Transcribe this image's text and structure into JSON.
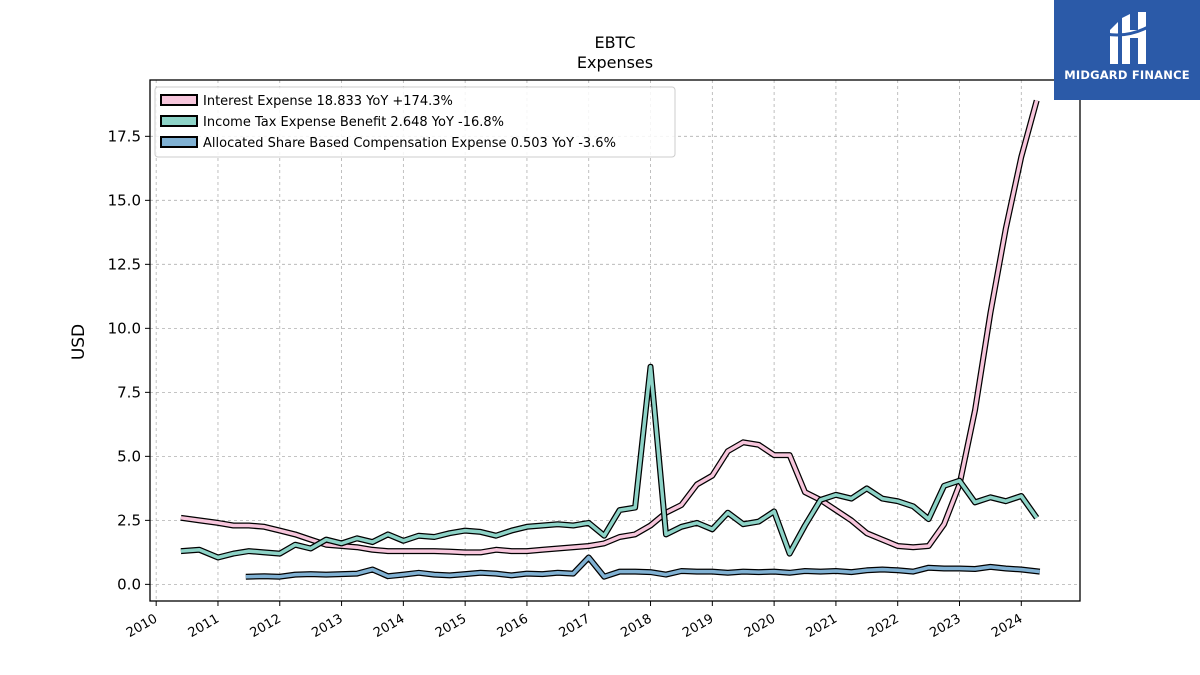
{
  "brand": {
    "name": "MIDGARD FINANCE",
    "logo_color": "#2b5aa8"
  },
  "chart_data": {
    "type": "line",
    "title": "EBTC",
    "subtitle": "Expenses",
    "ylabel": "USD",
    "xlabel": "",
    "xlim": [
      2009.9,
      2024.95
    ],
    "ylim": [
      -0.65,
      19.7
    ],
    "grid": true,
    "legend_position": "top-left",
    "x_ticks": [
      "2010",
      "2011",
      "2012",
      "2013",
      "2014",
      "2015",
      "2016",
      "2017",
      "2018",
      "2019",
      "2020",
      "2021",
      "2022",
      "2023",
      "2024"
    ],
    "y_ticks": [
      "0.0",
      "2.5",
      "5.0",
      "7.5",
      "10.0",
      "12.5",
      "15.0",
      "17.5"
    ],
    "series": [
      {
        "name": "Interest Expense",
        "legend_label": "Interest Expense  18.833 YoY +174.3%",
        "color": "#f7c6dc",
        "x": [
          2010.4,
          2010.7,
          2011.0,
          2011.25,
          2011.5,
          2011.75,
          2012.0,
          2012.25,
          2012.5,
          2012.75,
          2013.0,
          2013.25,
          2013.5,
          2013.75,
          2014.0,
          2014.25,
          2014.5,
          2014.75,
          2015.0,
          2015.25,
          2015.5,
          2015.75,
          2016.0,
          2016.25,
          2016.5,
          2016.75,
          2017.0,
          2017.25,
          2017.5,
          2017.75,
          2018.0,
          2018.25,
          2018.5,
          2018.75,
          2019.0,
          2019.25,
          2019.5,
          2019.75,
          2020.0,
          2020.25,
          2020.5,
          2020.75,
          2021.0,
          2021.25,
          2021.5,
          2021.75,
          2022.0,
          2022.25,
          2022.5,
          2022.75,
          2023.0,
          2023.25,
          2023.5,
          2023.75,
          2024.0,
          2024.25
        ],
        "y": [
          2.6,
          2.5,
          2.4,
          2.3,
          2.3,
          2.25,
          2.1,
          1.95,
          1.75,
          1.55,
          1.5,
          1.45,
          1.35,
          1.3,
          1.3,
          1.3,
          1.3,
          1.28,
          1.25,
          1.25,
          1.35,
          1.3,
          1.3,
          1.35,
          1.4,
          1.45,
          1.5,
          1.6,
          1.85,
          1.95,
          2.3,
          2.8,
          3.1,
          3.9,
          4.25,
          5.2,
          5.55,
          5.45,
          5.05,
          5.05,
          3.6,
          3.3,
          2.9,
          2.5,
          2.0,
          1.75,
          1.5,
          1.45,
          1.5,
          2.35,
          3.9,
          6.8,
          10.6,
          13.9,
          16.7,
          18.9
        ]
      },
      {
        "name": "Income Tax Expense Benefit",
        "legend_label": "Income Tax Expense Benefit  2.648 YoY -16.8%",
        "color": "#8dd3c7",
        "x": [
          2010.4,
          2010.7,
          2011.0,
          2011.25,
          2011.5,
          2011.75,
          2012.0,
          2012.25,
          2012.5,
          2012.75,
          2013.0,
          2013.25,
          2013.5,
          2013.75,
          2014.0,
          2014.25,
          2014.5,
          2014.75,
          2015.0,
          2015.25,
          2015.5,
          2015.75,
          2016.0,
          2016.25,
          2016.5,
          2016.75,
          2017.0,
          2017.25,
          2017.5,
          2017.75,
          2018.0,
          2018.25,
          2018.5,
          2018.75,
          2019.0,
          2019.25,
          2019.5,
          2019.75,
          2020.0,
          2020.25,
          2020.5,
          2020.75,
          2021.0,
          2021.25,
          2021.5,
          2021.75,
          2022.0,
          2022.25,
          2022.5,
          2022.75,
          2023.0,
          2023.25,
          2023.5,
          2023.75,
          2024.0,
          2024.25
        ],
        "y": [
          1.3,
          1.35,
          1.05,
          1.2,
          1.3,
          1.25,
          1.2,
          1.55,
          1.4,
          1.75,
          1.6,
          1.8,
          1.65,
          1.95,
          1.7,
          1.9,
          1.85,
          2.0,
          2.1,
          2.05,
          1.9,
          2.1,
          2.25,
          2.3,
          2.35,
          2.3,
          2.4,
          1.9,
          2.9,
          3.0,
          8.5,
          1.95,
          2.25,
          2.4,
          2.15,
          2.8,
          2.35,
          2.45,
          2.85,
          1.2,
          2.3,
          3.3,
          3.5,
          3.35,
          3.75,
          3.35,
          3.25,
          3.05,
          2.55,
          3.85,
          4.05,
          3.2,
          3.4,
          3.25,
          3.45,
          2.6
        ]
      },
      {
        "name": "Allocated Share Based Compensation Expense",
        "legend_label": "Allocated Share Based Compensation Expense  0.503 YoY -3.6%",
        "color": "#80b1d3",
        "x": [
          2011.45,
          2011.75,
          2012.0,
          2012.25,
          2012.5,
          2012.75,
          2013.0,
          2013.25,
          2013.5,
          2013.75,
          2014.0,
          2014.25,
          2014.5,
          2014.75,
          2015.0,
          2015.25,
          2015.5,
          2015.75,
          2016.0,
          2016.25,
          2016.5,
          2016.75,
          2017.0,
          2017.25,
          2017.5,
          2017.75,
          2018.0,
          2018.25,
          2018.5,
          2018.75,
          2019.0,
          2019.25,
          2019.5,
          2019.75,
          2020.0,
          2020.25,
          2020.5,
          2020.75,
          2021.0,
          2021.25,
          2021.5,
          2021.75,
          2022.0,
          2022.25,
          2022.5,
          2022.75,
          2023.0,
          2023.25,
          2023.5,
          2023.75,
          2024.0,
          2024.3
        ],
        "y": [
          0.3,
          0.32,
          0.3,
          0.38,
          0.4,
          0.38,
          0.4,
          0.42,
          0.58,
          0.32,
          0.38,
          0.45,
          0.38,
          0.35,
          0.4,
          0.45,
          0.42,
          0.35,
          0.42,
          0.4,
          0.45,
          0.42,
          1.05,
          0.3,
          0.5,
          0.5,
          0.48,
          0.38,
          0.52,
          0.5,
          0.5,
          0.45,
          0.5,
          0.48,
          0.5,
          0.45,
          0.52,
          0.5,
          0.52,
          0.48,
          0.55,
          0.58,
          0.55,
          0.5,
          0.65,
          0.62,
          0.62,
          0.6,
          0.68,
          0.62,
          0.58,
          0.5
        ]
      }
    ]
  }
}
